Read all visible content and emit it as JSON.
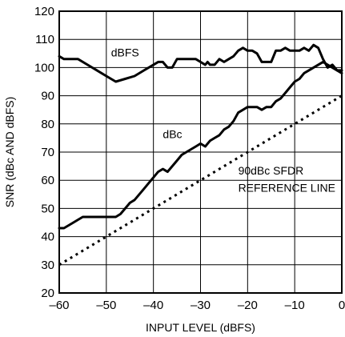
{
  "chart_data": {
    "type": "line",
    "title": "",
    "xlabel": "INPUT LEVEL (dBFS)",
    "ylabel": "SNR (dBc AND dBFS)",
    "xlim": [
      -60,
      0
    ],
    "ylim": [
      20,
      120
    ],
    "xticks": [
      -60,
      -50,
      -40,
      -30,
      -20,
      -10,
      0
    ],
    "yticks": [
      20,
      30,
      40,
      50,
      60,
      70,
      80,
      90,
      100,
      110,
      120
    ],
    "x_tick_labels": [
      "–60",
      "–50",
      "–40",
      "–30",
      "–20",
      "–10",
      "0"
    ],
    "y_tick_labels": [
      "20",
      "30",
      "40",
      "50",
      "60",
      "70",
      "80",
      "90",
      "100",
      "110",
      "120"
    ],
    "grid": true,
    "series": [
      {
        "name": "dBFS",
        "style": "solid",
        "x": [
          -60,
          -59,
          -58,
          -56,
          -54,
          -52,
          -50,
          -49,
          -48,
          -46,
          -44,
          -42,
          -40,
          -39,
          -38,
          -37,
          -36,
          -35,
          -34,
          -33,
          -32,
          -31,
          -30,
          -29,
          -28.5,
          -28,
          -27,
          -26,
          -25,
          -24,
          -23,
          -22,
          -21,
          -20,
          -19,
          -18,
          -17,
          -16,
          -15,
          -14,
          -13,
          -12,
          -11,
          -10,
          -9,
          -8,
          -7,
          -6,
          -5,
          -4,
          -3,
          -2,
          -1,
          0
        ],
        "y": [
          104,
          103,
          103,
          103,
          101,
          99,
          97,
          96,
          95,
          96,
          97,
          99,
          101,
          102,
          102,
          100,
          100,
          103,
          103,
          103,
          103,
          103,
          102,
          101,
          102,
          101,
          101,
          103,
          102,
          103,
          104,
          106,
          107,
          106,
          106,
          105,
          102,
          102,
          102,
          106,
          106,
          107,
          106,
          106,
          106,
          107,
          106,
          108,
          107,
          103,
          100,
          101,
          99,
          99
        ]
      },
      {
        "name": "dBc",
        "style": "solid",
        "x": [
          -60,
          -59,
          -58,
          -57,
          -56,
          -55,
          -54,
          -53,
          -52,
          -51,
          -50,
          -49,
          -48,
          -47,
          -46,
          -45,
          -44,
          -43,
          -42,
          -41,
          -40,
          -39,
          -38,
          -37,
          -36,
          -35,
          -34,
          -33,
          -32,
          -31,
          -30,
          -29,
          -28,
          -27,
          -26,
          -25,
          -24,
          -23,
          -22,
          -21,
          -20,
          -19,
          -18,
          -17,
          -16,
          -15,
          -14,
          -13,
          -12,
          -11,
          -10,
          -9,
          -8,
          -7,
          -6,
          -5,
          -4,
          -3,
          -2,
          -1,
          0
        ],
        "y": [
          43,
          43,
          44,
          45,
          46,
          47,
          47,
          47,
          47,
          47,
          47,
          47,
          47,
          48,
          50,
          52,
          53,
          55,
          57,
          59,
          61,
          63,
          64,
          63,
          65,
          67,
          69,
          70,
          71,
          72,
          73,
          72,
          74,
          75,
          76,
          78,
          79,
          81,
          84,
          85,
          86,
          86,
          86,
          85,
          86,
          86,
          88,
          89,
          91,
          93,
          95,
          96,
          98,
          99,
          100,
          101,
          102,
          101,
          100,
          99,
          98
        ]
      },
      {
        "name": "90dBc SFDR REFERENCE LINE",
        "style": "dashed",
        "x": [
          -60,
          0
        ],
        "y": [
          30,
          90
        ]
      }
    ],
    "annotations": [
      {
        "text": "dBFS",
        "x": -49,
        "y": 104
      },
      {
        "text": "dBc",
        "x": -38,
        "y": 75
      },
      {
        "text": "90dBc SFDR",
        "x": -22,
        "y": 62
      },
      {
        "text": "REFERENCE LINE",
        "x": -22,
        "y": 56
      }
    ]
  }
}
